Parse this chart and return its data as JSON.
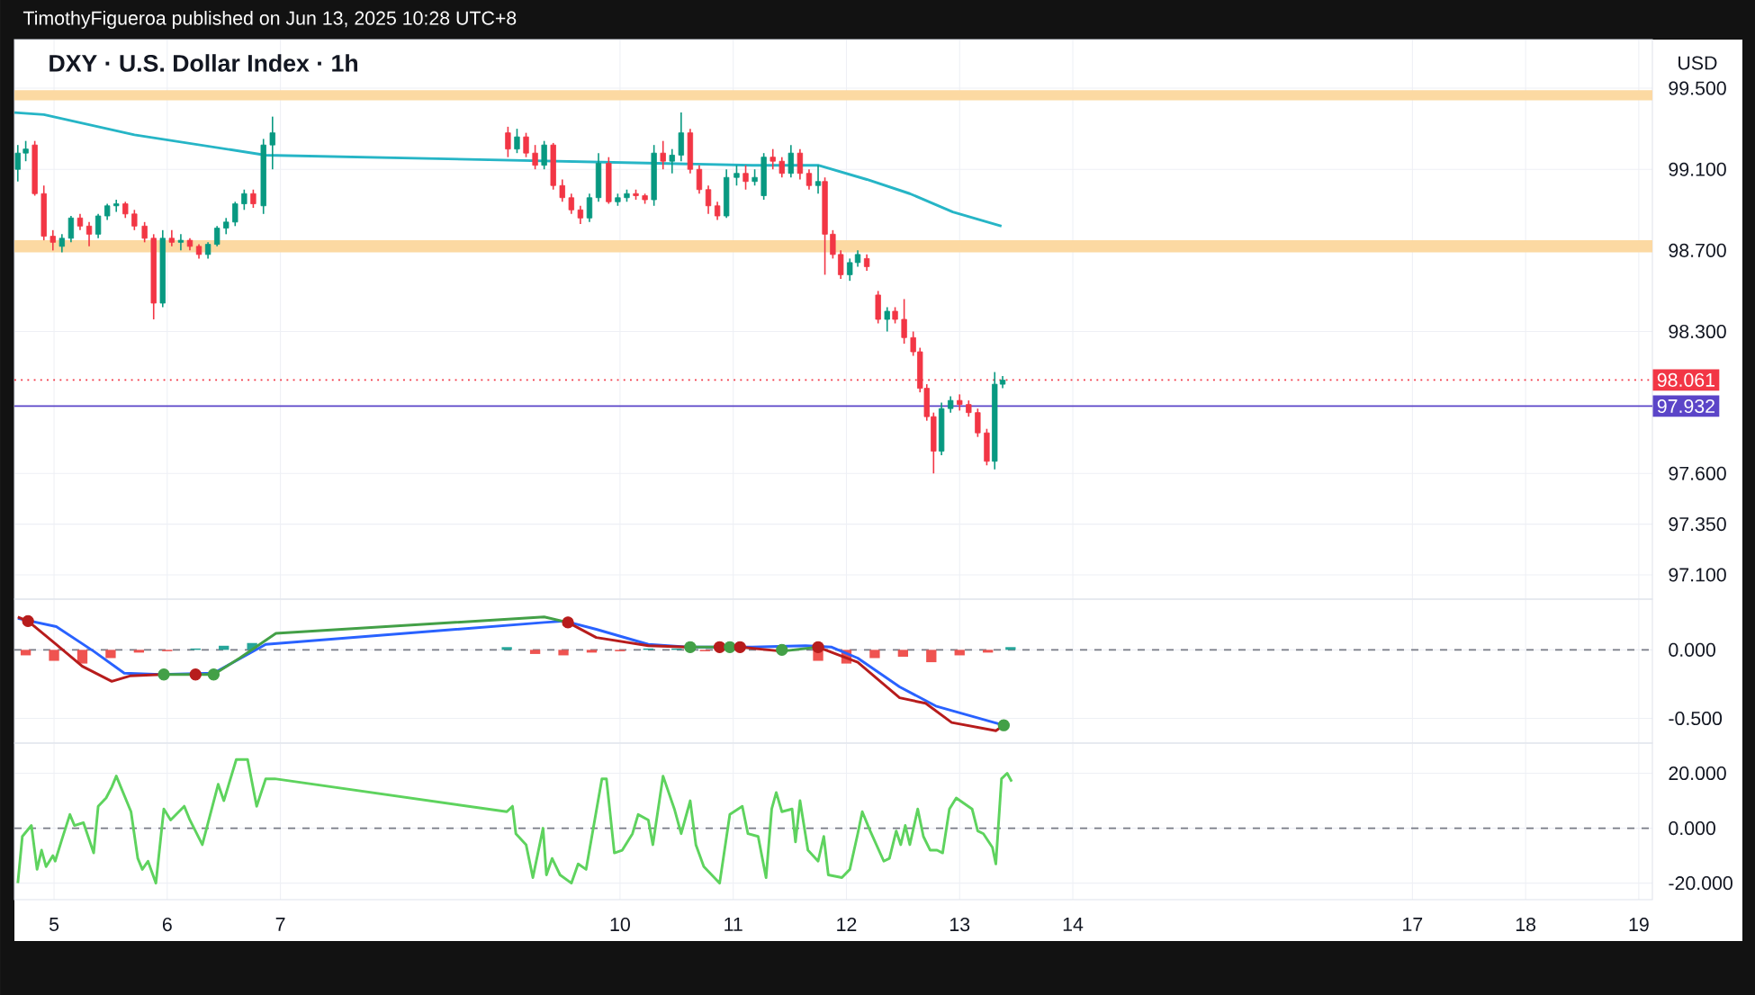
{
  "chart_data": [
    {
      "type": "candlestick",
      "title": "DXY · U.S. Dollar Index · 1h",
      "ylabel": "USD",
      "annotations": [
        "TimothyFigueroa published on Jun 13, 2025 10:28 UTC+8"
      ],
      "x": [
        4.68,
        4.75,
        4.83,
        4.91,
        4.99,
        5.07,
        5.15,
        5.23,
        5.31,
        5.39,
        5.47,
        5.55,
        5.63,
        5.71,
        5.8,
        5.88,
        5.96,
        6.04,
        6.12,
        6.2,
        6.28,
        6.36,
        6.44,
        6.52,
        6.6,
        6.68,
        6.76,
        6.85,
        6.93,
        9.01,
        9.09,
        9.17,
        9.25,
        9.33,
        9.41,
        9.49,
        9.57,
        9.65,
        9.73,
        9.81,
        9.9,
        9.98,
        10.06,
        10.14,
        10.22,
        10.3,
        10.38,
        10.46,
        10.54,
        10.62,
        10.7,
        10.78,
        10.86,
        10.94,
        11.03,
        11.11,
        11.19,
        11.27,
        11.35,
        11.43,
        11.51,
        11.59,
        11.67,
        11.75,
        11.81,
        11.88,
        11.95,
        12.03,
        12.1,
        12.18,
        12.28,
        12.36,
        12.43,
        12.51,
        12.59,
        12.65,
        12.71,
        12.77,
        12.84,
        12.92,
        13.0,
        13.08,
        13.16,
        13.24,
        13.31,
        13.38
      ],
      "ohlc": [
        [
          99.1,
          99.22,
          99.04,
          99.18
        ],
        [
          99.18,
          99.24,
          99.14,
          99.2
        ],
        [
          99.22,
          99.24,
          98.97,
          98.98
        ],
        [
          98.98,
          99.02,
          98.75,
          98.77
        ],
        [
          98.77,
          98.8,
          98.7,
          98.74
        ],
        [
          98.72,
          98.78,
          98.69,
          98.76
        ],
        [
          98.76,
          98.87,
          98.74,
          98.86
        ],
        [
          98.86,
          98.88,
          98.8,
          98.82
        ],
        [
          98.82,
          98.84,
          98.72,
          98.78
        ],
        [
          98.78,
          98.88,
          98.76,
          98.87
        ],
        [
          98.87,
          98.93,
          98.85,
          98.92
        ],
        [
          98.92,
          98.95,
          98.89,
          98.93
        ],
        [
          98.93,
          98.94,
          98.86,
          98.88
        ],
        [
          98.88,
          98.9,
          98.8,
          98.82
        ],
        [
          98.82,
          98.84,
          98.74,
          98.76
        ],
        [
          98.76,
          98.78,
          98.36,
          98.44
        ],
        [
          98.44,
          98.8,
          98.42,
          98.76
        ],
        [
          98.76,
          98.8,
          98.72,
          98.74
        ],
        [
          98.74,
          98.78,
          98.7,
          98.75
        ],
        [
          98.75,
          98.76,
          98.7,
          98.72
        ],
        [
          98.72,
          98.73,
          98.66,
          98.68
        ],
        [
          98.68,
          98.74,
          98.66,
          98.73
        ],
        [
          98.73,
          98.82,
          98.72,
          98.81
        ],
        [
          98.81,
          98.86,
          98.78,
          98.84
        ],
        [
          98.84,
          98.94,
          98.82,
          98.93
        ],
        [
          98.93,
          99.0,
          98.9,
          98.98
        ],
        [
          98.98,
          99.0,
          98.91,
          98.93
        ],
        [
          98.92,
          99.25,
          98.88,
          99.22
        ],
        [
          99.22,
          99.36,
          99.1,
          99.28
        ],
        [
          99.28,
          99.31,
          99.16,
          99.2
        ],
        [
          99.2,
          99.3,
          99.18,
          99.26
        ],
        [
          99.26,
          99.28,
          99.16,
          99.18
        ],
        [
          99.18,
          99.22,
          99.1,
          99.12
        ],
        [
          99.12,
          99.24,
          99.1,
          99.22
        ],
        [
          99.22,
          99.23,
          99.0,
          99.02
        ],
        [
          99.02,
          99.05,
          98.94,
          98.96
        ],
        [
          98.96,
          98.98,
          98.88,
          98.9
        ],
        [
          98.9,
          98.92,
          98.83,
          98.86
        ],
        [
          98.86,
          98.98,
          98.84,
          98.96
        ],
        [
          98.96,
          99.18,
          98.94,
          99.13
        ],
        [
          99.13,
          99.16,
          98.93,
          98.94
        ],
        [
          98.94,
          98.98,
          98.92,
          98.96
        ],
        [
          98.96,
          99.0,
          98.94,
          98.98
        ],
        [
          98.98,
          99.0,
          98.95,
          98.97
        ],
        [
          98.97,
          98.98,
          98.93,
          98.95
        ],
        [
          98.95,
          99.22,
          98.92,
          99.18
        ],
        [
          99.18,
          99.24,
          99.1,
          99.14
        ],
        [
          99.14,
          99.2,
          99.08,
          99.17
        ],
        [
          99.17,
          99.38,
          99.14,
          99.28
        ],
        [
          99.28,
          99.3,
          99.08,
          99.1
        ],
        [
          99.1,
          99.12,
          98.98,
          99.0
        ],
        [
          99.0,
          99.02,
          98.88,
          98.92
        ],
        [
          98.92,
          98.94,
          98.85,
          98.87
        ],
        [
          98.87,
          99.1,
          98.86,
          99.06
        ],
        [
          99.06,
          99.12,
          99.02,
          99.08
        ],
        [
          99.08,
          99.12,
          99.0,
          99.04
        ],
        [
          99.04,
          99.1,
          99.02,
          99.06
        ],
        [
          98.97,
          99.18,
          98.95,
          99.16
        ],
        [
          99.16,
          99.2,
          99.1,
          99.14
        ],
        [
          99.14,
          99.16,
          99.06,
          99.08
        ],
        [
          99.08,
          99.22,
          99.06,
          99.18
        ],
        [
          99.18,
          99.2,
          99.05,
          99.08
        ],
        [
          99.08,
          99.1,
          99.0,
          99.02
        ],
        [
          99.02,
          99.12,
          98.98,
          99.04
        ],
        [
          99.04,
          99.06,
          98.58,
          98.78
        ],
        [
          98.78,
          98.8,
          98.66,
          98.68
        ],
        [
          98.68,
          98.7,
          98.56,
          98.58
        ],
        [
          98.58,
          98.66,
          98.55,
          98.64
        ],
        [
          98.64,
          98.7,
          98.62,
          98.68
        ],
        [
          98.66,
          98.68,
          98.6,
          98.62
        ],
        [
          98.48,
          98.5,
          98.34,
          98.36
        ],
        [
          98.36,
          98.42,
          98.3,
          98.4
        ],
        [
          98.4,
          98.42,
          98.34,
          98.36
        ],
        [
          98.36,
          98.46,
          98.24,
          98.27
        ],
        [
          98.27,
          98.3,
          98.18,
          98.2
        ],
        [
          98.2,
          98.22,
          98.0,
          98.02
        ],
        [
          98.02,
          98.04,
          97.86,
          97.88
        ],
        [
          97.88,
          97.9,
          97.6,
          97.71
        ],
        [
          97.71,
          97.95,
          97.69,
          97.92
        ],
        [
          97.92,
          97.98,
          97.9,
          97.96
        ],
        [
          97.96,
          97.99,
          97.91,
          97.94
        ],
        [
          97.94,
          97.96,
          97.88,
          97.9
        ],
        [
          97.9,
          97.92,
          97.78,
          97.8
        ],
        [
          97.8,
          97.82,
          97.64,
          97.66
        ],
        [
          97.66,
          98.1,
          97.62,
          98.04
        ],
        [
          98.04,
          98.08,
          98.02,
          98.06
        ]
      ],
      "colors": [
        "#089981",
        "#089981",
        "#f23645",
        "#f23645",
        "#f23645",
        "#089981",
        "#089981",
        "#f23645",
        "#f23645",
        "#089981",
        "#089981",
        "#089981",
        "#f23645",
        "#f23645",
        "#f23645",
        "#f23645",
        "#089981",
        "#f23645",
        "#089981",
        "#f23645",
        "#f23645",
        "#089981",
        "#089981",
        "#089981",
        "#089981",
        "#089981",
        "#f23645",
        "#089981",
        "#089981",
        "#f23645",
        "#089981",
        "#f23645",
        "#f23645",
        "#089981",
        "#f23645",
        "#f23645",
        "#f23645",
        "#f23645",
        "#089981",
        "#089981",
        "#f23645",
        "#089981",
        "#089981",
        "#f23645",
        "#f23645",
        "#089981",
        "#f23645",
        "#089981",
        "#089981",
        "#f23645",
        "#f23645",
        "#f23645",
        "#f23645",
        "#089981",
        "#089981",
        "#f23645",
        "#089981",
        "#089981",
        "#f23645",
        "#f23645",
        "#089981",
        "#f23645",
        "#f23645",
        "#089981",
        "#f23645",
        "#f23645",
        "#f23645",
        "#089981",
        "#089981",
        "#f23645",
        "#f23645",
        "#089981",
        "#f23645",
        "#f23645",
        "#f23645",
        "#f23645",
        "#f23645",
        "#f23645",
        "#089981",
        "#089981",
        "#f23645",
        "#f23645",
        "#f23645",
        "#f23645",
        "#089981",
        "#089981"
      ],
      "series": [
        {
          "type": "line",
          "color": "#26b5c6",
          "x": [
            4.65,
            4.91,
            5.71,
            6.87,
            10.33,
            11.17,
            11.75,
            12.18,
            12.56,
            12.94,
            13.37
          ],
          "values": [
            99.38,
            99.37,
            99.27,
            99.17,
            99.13,
            99.12,
            99.12,
            99.05,
            98.98,
            98.89,
            98.82
          ]
        }
      ],
      "bands": [
        {
          "axis": "y",
          "from": 99.44,
          "to": 99.49,
          "color": "#fcd9a2"
        },
        {
          "axis": "y",
          "from": 98.69,
          "to": 98.75,
          "color": "#fcd9a2"
        }
      ],
      "ref_lines": [
        {
          "axis": "y",
          "value": 98.061,
          "label": "98.061",
          "color": "#f23645",
          "line_style": "dotted"
        },
        {
          "axis": "y",
          "value": 97.932,
          "label": "97.932",
          "color": "#5b45c8",
          "line_style": "solid"
        }
      ],
      "xlim": [
        4.65,
        19.12
      ],
      "ylim": [
        96.98,
        99.74
      ],
      "xticks": [
        5,
        6,
        7,
        10,
        11,
        12,
        13,
        14,
        17,
        18,
        19
      ],
      "yticks": [
        {
          "value": 99.5,
          "label": "99.500"
        },
        {
          "value": 99.1,
          "label": "99.100"
        },
        {
          "value": 98.7,
          "label": "98.700"
        },
        {
          "value": 98.3,
          "label": "98.300"
        },
        {
          "value": 97.6,
          "label": "97.600"
        },
        {
          "value": 97.35,
          "label": "97.350"
        },
        {
          "value": 97.1,
          "label": "97.100"
        }
      ],
      "grid": true,
      "tick_labels": "y"
    },
    {
      "type": "line",
      "series": [
        {
          "type": "bar",
          "x": [
            4.75,
            5,
            5.25,
            5.5,
            5.75,
            6,
            6.25,
            6.5,
            6.75,
            9.0,
            9.25,
            9.5,
            9.75,
            10,
            10.25,
            10.5,
            10.75,
            11,
            11.25,
            11.5,
            11.75,
            12,
            12.25,
            12.5,
            12.75,
            13,
            13.25,
            13.45
          ],
          "values": [
            -0.04,
            -0.08,
            -0.1,
            -0.06,
            -0.02,
            -0.01,
            0.01,
            0.03,
            0.05,
            0.02,
            -0.03,
            -0.04,
            -0.02,
            -0.01,
            0.01,
            0.01,
            -0.01,
            0.01,
            null,
            null,
            -0.08,
            -0.1,
            -0.06,
            -0.05,
            -0.09,
            -0.04,
            -0.02,
            0.02
          ],
          "colors": [
            "#ef5350",
            "#ef5350",
            "#ef5350",
            "#ef5350",
            "#ef5350",
            "#ef5350",
            "#26a69a",
            "#26a69a",
            "#26a69a",
            "#26a69a",
            "#ef5350",
            "#ef5350",
            "#ef5350",
            "#ef5350",
            "#26a69a",
            "#26a69a",
            "#ef5350",
            "#26a69a",
            "#26a69a",
            "#ef5350",
            "#ef5350",
            "#ef5350",
            "#ef5350",
            "#ef5350",
            "#ef5350",
            "#ef5350",
            "#ef5350",
            "#26a69a"
          ]
        },
        {
          "type": "line",
          "color": "#2962ff",
          "x": [
            4.68,
            5.02,
            5.35,
            5.62,
            5.94,
            6.41,
            6.87,
            9.33,
            9.51,
            9.79,
            10.25,
            10.62,
            11.17,
            11.64,
            11.87,
            12.1,
            12.47,
            12.79,
            13.39
          ],
          "values": [
            0.23,
            0.17,
            -0.01,
            -0.17,
            -0.18,
            -0.17,
            0.04,
            0.2,
            0.21,
            0.15,
            0.04,
            0.02,
            0.02,
            0.03,
            0.02,
            -0.06,
            -0.27,
            -0.41,
            -0.55
          ]
        },
        {
          "type": "line",
          "color": "#b71c1c",
          "x": [
            4.68,
            4.77,
            5.02,
            5.25,
            5.51,
            5.67,
            5.95,
            5.97,
            6.5,
            9.54,
            9.79,
            10.25,
            10.62,
            10.7,
            10.88,
            11.06,
            11.43,
            11.6,
            11.75,
            12.1,
            12.47,
            12.7,
            12.93,
            13.32,
            13.39
          ],
          "values": [
            0.24,
            0.21,
            0.04,
            -0.12,
            -0.23,
            -0.19,
            -0.18,
            -0.18,
            null,
            0.2,
            0.09,
            0.03,
            0.02,
            null,
            0.02,
            0.02,
            -0.01,
            null,
            0.02,
            -0.09,
            -0.35,
            -0.39,
            -0.53,
            -0.59,
            -0.55
          ]
        },
        {
          "type": "line",
          "color": "#43a047",
          "x": [
            5.97,
            6.25,
            6.41,
            6.64,
            6.96,
            9.33,
            9.54,
            10,
            10.62,
            10.88,
            11.1,
            11.43,
            11.75
          ],
          "values": [
            -0.18,
            -0.18,
            -0.18,
            -0.06,
            0.12,
            0.24,
            0.2,
            null,
            0.02,
            0.02,
            null,
            -0.01,
            0.02
          ]
        },
        {
          "type": "scatter",
          "x": [
            4.77,
            5.97,
            6.25,
            6.41,
            9.54,
            10.62,
            10.88,
            10.97,
            11.06,
            11.43,
            11.75,
            13.39
          ],
          "values": [
            0.21,
            -0.18,
            -0.18,
            -0.18,
            0.2,
            0.02,
            0.02,
            0.02,
            0.02,
            0.0,
            0.02,
            -0.55
          ],
          "colors": [
            "#b71c1c",
            "#43a047",
            "#b71c1c",
            "#43a047",
            "#b71c1c",
            "#43a047",
            "#b71c1c",
            "#43a047",
            "#b71c1c",
            "#43a047",
            "#b71c1c",
            "#43a047"
          ]
        }
      ],
      "ref_lines": [
        {
          "axis": "y",
          "value": 0,
          "color": "#787b86",
          "line_style": "dashed"
        }
      ],
      "xlim": [
        4.65,
        19.12
      ],
      "ylim": [
        -0.68,
        0.37
      ],
      "xticks": [
        5,
        6,
        7,
        10,
        11,
        12,
        13,
        14,
        17,
        18,
        19
      ],
      "yticks": [
        {
          "value": 0,
          "label": "0.000"
        },
        {
          "value": -0.5,
          "label": "-0.500"
        }
      ],
      "grid": true,
      "tick_labels": "y"
    },
    {
      "type": "line",
      "series": [
        {
          "color": "#5ed35e",
          "x": [
            4.68,
            4.72,
            4.8,
            4.85,
            4.89,
            4.93,
            4.99,
            5.01,
            5.07,
            5.14,
            5.18,
            5.26,
            5.35,
            5.39,
            5.46,
            5.51,
            5.55,
            5.68,
            5.74,
            5.78,
            5.83,
            5.9,
            5.97,
            6.03,
            6.15,
            6.2,
            6.31,
            6.45,
            6.5,
            6.61,
            6.71,
            6.79,
            6.87,
            6.95,
            9.0,
            9.05,
            9.08,
            9.17,
            9.23,
            9.32,
            9.35,
            9.4,
            9.47,
            9.57,
            9.63,
            9.7,
            9.84,
            9.88,
            9.95,
            10.02,
            10.11,
            10.16,
            10.25,
            10.29,
            10.38,
            10.48,
            10.54,
            10.62,
            10.67,
            10.74,
            10.88,
            10.97,
            11.08,
            11.13,
            11.22,
            11.29,
            11.34,
            11.38,
            11.43,
            11.52,
            11.55,
            11.59,
            11.66,
            11.75,
            11.8,
            11.84,
            11.96,
            12.03,
            12.1,
            12.14,
            12.21,
            12.33,
            12.38,
            12.44,
            12.48,
            12.52,
            12.56,
            12.63,
            12.68,
            12.74,
            12.8,
            12.85,
            12.91,
            12.97,
            13.11,
            13.16,
            13.21,
            13.29,
            13.32,
            13.37,
            13.42,
            13.46
          ],
          "values": [
            -20,
            -3,
            1,
            -15,
            -8,
            -14,
            -10,
            -12,
            -4,
            5,
            1,
            2,
            -9,
            8,
            11,
            15,
            19,
            6,
            -11,
            -15,
            -12,
            -20,
            7,
            3,
            8,
            3,
            -6,
            16,
            10,
            25,
            25,
            8,
            18,
            18,
            6,
            8,
            -2,
            -6,
            -18,
            0,
            -17,
            -11,
            -17,
            -20,
            -13,
            -15,
            18,
            18,
            -9,
            -8,
            -2,
            5,
            3,
            -6,
            19,
            7,
            -2,
            10,
            -6,
            -14,
            -20,
            5,
            8,
            -2,
            -3,
            -18,
            7,
            13,
            6,
            7,
            -5,
            10,
            -8,
            -12,
            -3,
            -17,
            -18,
            -15,
            -2,
            6,
            -1,
            -12,
            -11,
            -1,
            -6,
            1,
            -6,
            7,
            -3,
            -8,
            -8,
            -9,
            7,
            11,
            7,
            -1,
            -2,
            -7,
            -13,
            18,
            20,
            17
          ]
        }
      ],
      "ref_lines": [
        {
          "axis": "y",
          "value": 0,
          "color": "#787b86",
          "line_style": "dashed"
        }
      ],
      "xlim": [
        4.65,
        19.12
      ],
      "ylim": [
        -26,
        31
      ],
      "xticks": [
        5,
        6,
        7,
        10,
        11,
        12,
        13,
        14,
        17,
        18,
        19
      ],
      "yticks": [
        {
          "value": 20,
          "label": "20.000"
        },
        {
          "value": 0,
          "label": "0.000"
        },
        {
          "value": -20,
          "label": "-20.000"
        }
      ],
      "grid": true
    }
  ]
}
